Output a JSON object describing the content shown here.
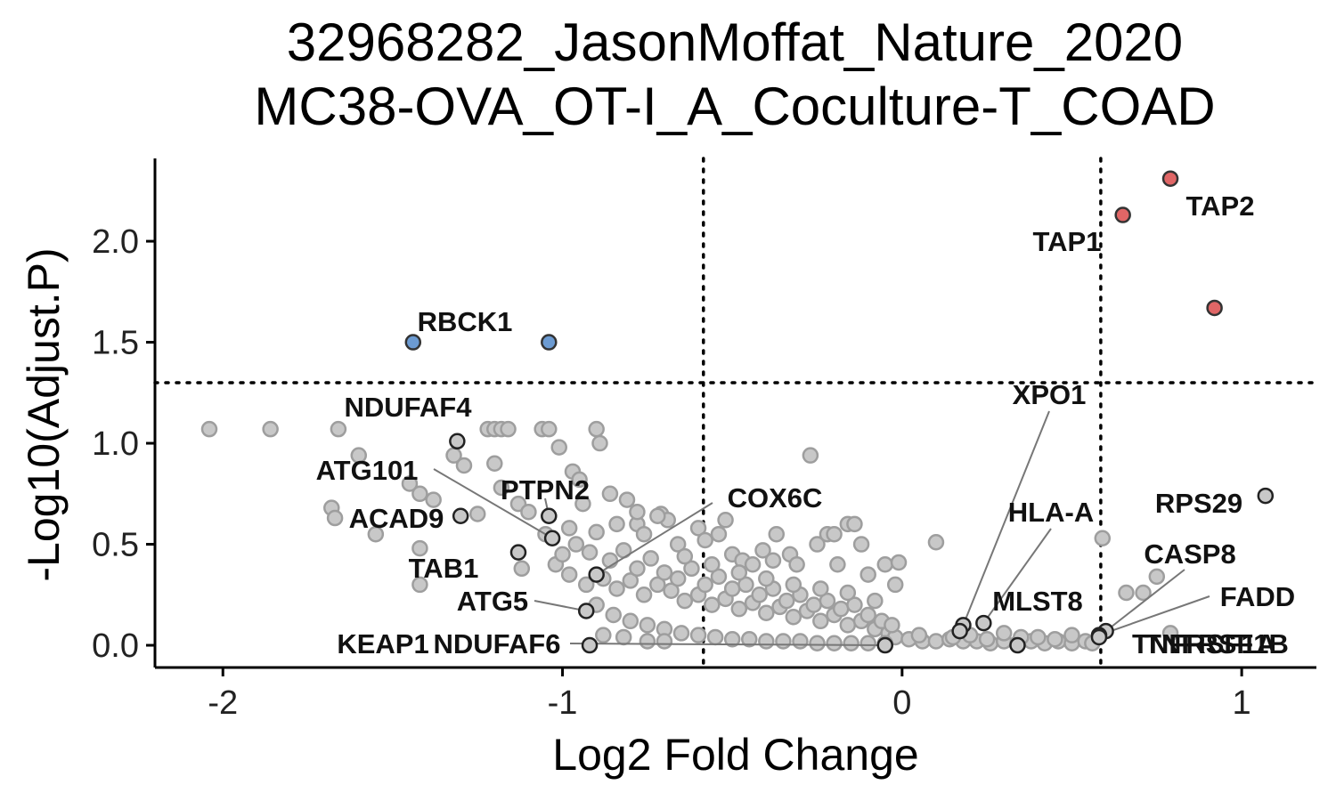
{
  "chart_data": {
    "type": "scatter",
    "title": [
      "32968282_JasonMoffat_Nature_2020",
      "MC38-OVA_OT-I_A_Coculture-T_COAD"
    ],
    "xlabel": "Log2 Fold Change",
    "ylabel": "-Log10(Adjust.P)",
    "xlim": [
      -2.2,
      1.22
    ],
    "ylim": [
      -0.11,
      2.41
    ],
    "x_ticks": [
      -2,
      -1,
      0,
      1
    ],
    "x_tick_labels": [
      "-2",
      "-1",
      "0",
      "1"
    ],
    "y_ticks": [
      0,
      0.5,
      1,
      1.5,
      2
    ],
    "y_tick_labels": [
      "0.0",
      "0.5",
      "1.0",
      "1.5",
      "2.0"
    ],
    "threshold_x": [
      -0.585,
      0.585
    ],
    "threshold_y": 1.3,
    "colors": {
      "up": "#e06666",
      "down": "#6c9bd2",
      "background": "#c8c8c8",
      "background_edge": "#9e9e9e",
      "labeled_edge": "#222222"
    },
    "significant_up": [
      {
        "gene": "TAP2",
        "x": 0.79,
        "y": 2.31
      },
      {
        "gene": "TAP1",
        "x": 0.65,
        "y": 2.13
      },
      {
        "gene": "",
        "x": 0.92,
        "y": 1.67
      }
    ],
    "significant_down": [
      {
        "gene": "RBCK1",
        "x": -1.44,
        "y": 1.5
      },
      {
        "gene": "",
        "x": -1.04,
        "y": 1.5
      }
    ],
    "labeled_points": [
      {
        "gene": "NDUFAF4",
        "x": -1.31,
        "y": 1.01
      },
      {
        "gene": "ATG101",
        "x": -1.03,
        "y": 0.53
      },
      {
        "gene": "ACAD9",
        "x": -1.3,
        "y": 0.64
      },
      {
        "gene": "PTPN2",
        "x": -1.04,
        "y": 0.64
      },
      {
        "gene": "TAB1",
        "x": -1.13,
        "y": 0.46
      },
      {
        "gene": "ATG5",
        "x": -0.93,
        "y": 0.17
      },
      {
        "gene": "COX6C",
        "x": -0.9,
        "y": 0.35
      },
      {
        "gene": "KEAP1",
        "x": -0.92,
        "y": 0.0
      },
      {
        "gene": "NDUFAF6",
        "x": -0.05,
        "y": 0.0
      },
      {
        "gene": "XPO1",
        "x": 0.18,
        "y": 0.1
      },
      {
        "gene": "HLA-A",
        "x": 0.24,
        "y": 0.11
      },
      {
        "gene": "MLST8",
        "x": 0.17,
        "y": 0.07
      },
      {
        "gene": "RPS29",
        "x": 1.07,
        "y": 0.74
      },
      {
        "gene": "CASP8",
        "x": 0.6,
        "y": 0.07
      },
      {
        "gene": "FADD",
        "x": 0.58,
        "y": 0.05
      },
      {
        "gene": "TNFRSF1A",
        "x": 0.58,
        "y": 0.04
      },
      {
        "gene": "TNFRSF1B",
        "x": 0.34,
        "y": 0.0
      }
    ],
    "background": [
      [
        -2.04,
        1.07
      ],
      [
        -1.86,
        1.07
      ],
      [
        -1.66,
        1.07
      ],
      [
        -1.6,
        0.94
      ],
      [
        -1.68,
        0.68
      ],
      [
        -1.67,
        0.63
      ],
      [
        -1.55,
        0.55
      ],
      [
        -1.45,
        0.8
      ],
      [
        -1.42,
        0.75
      ],
      [
        -1.42,
        0.48
      ],
      [
        -1.42,
        0.3
      ],
      [
        -1.38,
        0.72
      ],
      [
        -1.32,
        0.94
      ],
      [
        -1.29,
        0.89
      ],
      [
        -1.25,
        0.65
      ],
      [
        -1.22,
        1.07
      ],
      [
        -1.2,
        1.07
      ],
      [
        -1.18,
        1.07
      ],
      [
        -1.16,
        1.07
      ],
      [
        -1.2,
        0.9
      ],
      [
        -1.18,
        0.78
      ],
      [
        -1.13,
        0.7
      ],
      [
        -1.1,
        0.66
      ],
      [
        -1.06,
        1.07
      ],
      [
        -1.04,
        1.07
      ],
      [
        -1.01,
        0.98
      ],
      [
        -0.97,
        0.86
      ],
      [
        -0.95,
        0.82
      ],
      [
        -0.9,
        1.07
      ],
      [
        -0.89,
        1.0
      ],
      [
        -0.94,
        0.7
      ],
      [
        -0.86,
        0.75
      ],
      [
        -0.81,
        0.72
      ],
      [
        -0.78,
        0.6
      ],
      [
        -0.76,
        0.55
      ],
      [
        -0.71,
        0.65
      ],
      [
        -0.69,
        0.62
      ],
      [
        -0.66,
        0.5
      ],
      [
        -0.6,
        0.58
      ],
      [
        -0.58,
        0.52
      ],
      [
        -0.54,
        0.55
      ],
      [
        -0.52,
        0.62
      ],
      [
        -0.5,
        0.45
      ],
      [
        -0.47,
        0.42
      ],
      [
        -0.44,
        0.4
      ],
      [
        -0.41,
        0.47
      ],
      [
        -0.38,
        0.42
      ],
      [
        -0.37,
        0.55
      ],
      [
        -0.33,
        0.45
      ],
      [
        -0.31,
        0.4
      ],
      [
        -0.27,
        0.94
      ],
      [
        -0.25,
        0.5
      ],
      [
        -0.22,
        0.55
      ],
      [
        -0.2,
        0.55
      ],
      [
        -0.19,
        0.4
      ],
      [
        -0.16,
        0.6
      ],
      [
        -0.14,
        0.6
      ],
      [
        -0.12,
        0.5
      ],
      [
        -0.1,
        0.35
      ],
      [
        -0.05,
        0.4
      ],
      [
        -0.02,
        0.3
      ],
      [
        -0.01,
        0.41
      ],
      [
        0.1,
        0.51
      ],
      [
        0.59,
        0.53
      ],
      [
        0.66,
        0.26
      ],
      [
        0.71,
        0.26
      ],
      [
        0.75,
        0.34
      ],
      [
        0.79,
        0.06
      ],
      [
        -1.12,
        0.38
      ],
      [
        -1.02,
        0.4
      ],
      [
        -0.98,
        0.35
      ],
      [
        -0.93,
        0.3
      ],
      [
        -0.88,
        0.33
      ],
      [
        -0.84,
        0.28
      ],
      [
        -0.8,
        0.32
      ],
      [
        -0.76,
        0.25
      ],
      [
        -0.72,
        0.3
      ],
      [
        -0.68,
        0.27
      ],
      [
        -0.64,
        0.22
      ],
      [
        -0.6,
        0.25
      ],
      [
        -0.56,
        0.2
      ],
      [
        -0.52,
        0.23
      ],
      [
        -0.48,
        0.18
      ],
      [
        -0.44,
        0.21
      ],
      [
        -0.4,
        0.16
      ],
      [
        -0.36,
        0.19
      ],
      [
        -0.32,
        0.14
      ],
      [
        -0.28,
        0.17
      ],
      [
        -0.24,
        0.12
      ],
      [
        -0.2,
        0.15
      ],
      [
        -0.16,
        0.1
      ],
      [
        -0.12,
        0.12
      ],
      [
        -0.08,
        0.08
      ],
      [
        -0.04,
        0.06
      ],
      [
        -0.02,
        0.04
      ],
      [
        0.02,
        0.03
      ],
      [
        0.06,
        0.02
      ],
      [
        0.1,
        0.02
      ],
      [
        0.14,
        0.03
      ],
      [
        0.18,
        0.02
      ],
      [
        0.22,
        0.02
      ],
      [
        0.26,
        0.01
      ],
      [
        0.3,
        0.02
      ],
      [
        0.34,
        0.01
      ],
      [
        0.38,
        0.02
      ],
      [
        0.42,
        0.01
      ],
      [
        0.46,
        0.02
      ],
      [
        0.5,
        0.01
      ],
      [
        0.54,
        0.02
      ],
      [
        0.56,
        0.01
      ],
      [
        -1.0,
        0.45
      ],
      [
        -0.96,
        0.5
      ],
      [
        -0.92,
        0.46
      ],
      [
        -0.86,
        0.42
      ],
      [
        -0.82,
        0.47
      ],
      [
        -0.78,
        0.38
      ],
      [
        -0.74,
        0.43
      ],
      [
        -0.7,
        0.36
      ],
      [
        -0.66,
        0.33
      ],
      [
        -0.62,
        0.38
      ],
      [
        -0.58,
        0.3
      ],
      [
        -0.54,
        0.34
      ],
      [
        -0.5,
        0.28
      ],
      [
        -0.46,
        0.3
      ],
      [
        -0.42,
        0.25
      ],
      [
        -0.38,
        0.28
      ],
      [
        -0.34,
        0.22
      ],
      [
        -0.3,
        0.25
      ],
      [
        -0.26,
        0.2
      ],
      [
        -0.22,
        0.22
      ],
      [
        -0.18,
        0.18
      ],
      [
        -0.14,
        0.2
      ],
      [
        -0.1,
        0.15
      ],
      [
        -0.06,
        0.12
      ],
      [
        -0.03,
        0.1
      ],
      [
        -0.9,
        0.2
      ],
      [
        -0.85,
        0.15
      ],
      [
        -0.8,
        0.12
      ],
      [
        -0.75,
        0.1
      ],
      [
        -0.7,
        0.08
      ],
      [
        -0.65,
        0.06
      ],
      [
        -0.6,
        0.05
      ],
      [
        -0.55,
        0.04
      ],
      [
        -0.5,
        0.03
      ],
      [
        -0.45,
        0.03
      ],
      [
        -0.4,
        0.02
      ],
      [
        -0.35,
        0.02
      ],
      [
        -0.3,
        0.02
      ],
      [
        -0.25,
        0.01
      ],
      [
        -0.2,
        0.01
      ],
      [
        -0.15,
        0.01
      ],
      [
        -0.1,
        0.01
      ],
      [
        -0.05,
        0.01
      ],
      [
        -0.75,
        0.02
      ],
      [
        -0.7,
        0.02
      ],
      [
        -0.88,
        0.05
      ],
      [
        -0.82,
        0.04
      ],
      [
        -1.05,
        0.55
      ],
      [
        -0.98,
        0.58
      ],
      [
        -0.9,
        0.56
      ],
      [
        -0.84,
        0.6
      ],
      [
        -0.78,
        0.66
      ],
      [
        -0.72,
        0.64
      ],
      [
        -0.64,
        0.44
      ],
      [
        -0.56,
        0.4
      ],
      [
        -0.48,
        0.36
      ],
      [
        -0.4,
        0.33
      ],
      [
        -0.32,
        0.3
      ],
      [
        -0.24,
        0.28
      ],
      [
        -0.16,
        0.26
      ],
      [
        -0.08,
        0.22
      ],
      [
        0.2,
        0.05
      ],
      [
        0.3,
        0.06
      ],
      [
        0.4,
        0.04
      ],
      [
        0.5,
        0.05
      ],
      [
        0.45,
        0.03
      ],
      [
        0.35,
        0.04
      ],
      [
        0.25,
        0.03
      ],
      [
        0.15,
        0.04
      ],
      [
        0.05,
        0.05
      ]
    ]
  }
}
